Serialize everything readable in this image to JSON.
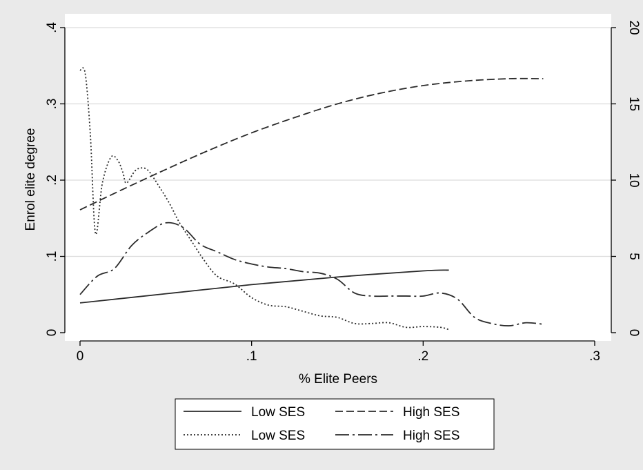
{
  "chart_data": {
    "type": "line",
    "xlabel": "% Elite Peers",
    "ylabel": "Enrol elite degree",
    "xlim": [
      0,
      0.3
    ],
    "ylim": [
      0,
      0.4
    ],
    "y2lim": [
      0,
      20
    ],
    "x_ticks": [
      {
        "v": 0,
        "label": "0"
      },
      {
        "v": 0.1,
        "label": ".1"
      },
      {
        "v": 0.2,
        "label": ".2"
      },
      {
        "v": 0.3,
        "label": ".3"
      }
    ],
    "y_ticks": [
      {
        "v": 0,
        "label": "0"
      },
      {
        "v": 0.1,
        "label": ".1"
      },
      {
        "v": 0.2,
        "label": ".2"
      },
      {
        "v": 0.3,
        "label": ".3"
      },
      {
        "v": 0.4,
        "label": ".4"
      }
    ],
    "y2_ticks": [
      {
        "v": 0,
        "label": "0"
      },
      {
        "v": 5,
        "label": "5"
      },
      {
        "v": 10,
        "label": "10"
      },
      {
        "v": 15,
        "label": "15"
      },
      {
        "v": 20,
        "label": "20"
      }
    ],
    "grid": true,
    "legend_position": "bottom",
    "series": [
      {
        "name": "Low SES",
        "axis": "left",
        "style": "solid",
        "points": [
          [
            0.0,
            0.039
          ],
          [
            0.05,
            0.051
          ],
          [
            0.1,
            0.063
          ],
          [
            0.15,
            0.073
          ],
          [
            0.2,
            0.081
          ],
          [
            0.215,
            0.082
          ]
        ]
      },
      {
        "name": "High SES",
        "axis": "left",
        "style": "dashed",
        "points": [
          [
            0.0,
            0.161
          ],
          [
            0.025,
            0.188
          ],
          [
            0.05,
            0.214
          ],
          [
            0.075,
            0.239
          ],
          [
            0.1,
            0.262
          ],
          [
            0.125,
            0.282
          ],
          [
            0.15,
            0.3
          ],
          [
            0.175,
            0.314
          ],
          [
            0.2,
            0.324
          ],
          [
            0.225,
            0.33
          ],
          [
            0.25,
            0.333
          ],
          [
            0.27,
            0.333
          ]
        ]
      },
      {
        "name": "Low SES",
        "axis": "right",
        "style": "dotted",
        "points": [
          [
            0.0,
            17.2
          ],
          [
            0.003,
            17.0
          ],
          [
            0.006,
            13.0
          ],
          [
            0.009,
            6.5
          ],
          [
            0.013,
            9.8
          ],
          [
            0.018,
            11.5
          ],
          [
            0.022,
            11.3
          ],
          [
            0.025,
            10.5
          ],
          [
            0.027,
            9.8
          ],
          [
            0.032,
            10.6
          ],
          [
            0.036,
            10.8
          ],
          [
            0.04,
            10.6
          ],
          [
            0.046,
            9.6
          ],
          [
            0.052,
            8.5
          ],
          [
            0.058,
            7.2
          ],
          [
            0.065,
            6.0
          ],
          [
            0.072,
            4.8
          ],
          [
            0.08,
            3.7
          ],
          [
            0.09,
            3.2
          ],
          [
            0.1,
            2.3
          ],
          [
            0.11,
            1.8
          ],
          [
            0.12,
            1.7
          ],
          [
            0.13,
            1.4
          ],
          [
            0.14,
            1.1
          ],
          [
            0.15,
            1.0
          ],
          [
            0.16,
            0.6
          ],
          [
            0.17,
            0.6
          ],
          [
            0.18,
            0.65
          ],
          [
            0.19,
            0.35
          ],
          [
            0.2,
            0.4
          ],
          [
            0.21,
            0.35
          ],
          [
            0.215,
            0.2
          ]
        ]
      },
      {
        "name": "High SES",
        "axis": "right",
        "style": "dashdot",
        "points": [
          [
            0.0,
            2.5
          ],
          [
            0.01,
            3.7
          ],
          [
            0.02,
            4.2
          ],
          [
            0.03,
            5.7
          ],
          [
            0.04,
            6.6
          ],
          [
            0.05,
            7.2
          ],
          [
            0.06,
            6.9
          ],
          [
            0.07,
            5.8
          ],
          [
            0.08,
            5.3
          ],
          [
            0.09,
            4.8
          ],
          [
            0.1,
            4.5
          ],
          [
            0.11,
            4.3
          ],
          [
            0.12,
            4.2
          ],
          [
            0.13,
            4.0
          ],
          [
            0.14,
            3.9
          ],
          [
            0.15,
            3.5
          ],
          [
            0.16,
            2.6
          ],
          [
            0.17,
            2.4
          ],
          [
            0.18,
            2.4
          ],
          [
            0.19,
            2.4
          ],
          [
            0.2,
            2.4
          ],
          [
            0.21,
            2.6
          ],
          [
            0.22,
            2.2
          ],
          [
            0.23,
            1.0
          ],
          [
            0.24,
            0.6
          ],
          [
            0.25,
            0.45
          ],
          [
            0.26,
            0.65
          ],
          [
            0.27,
            0.55
          ]
        ]
      }
    ]
  }
}
